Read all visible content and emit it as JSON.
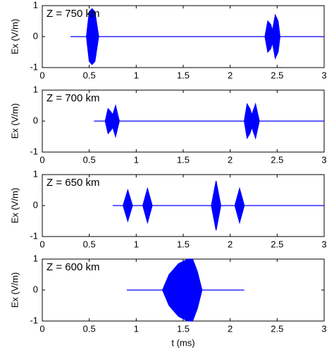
{
  "chart_data": [
    {
      "type": "area",
      "annotation": "Z = 750 km",
      "ylabel": "Ex (V/m)",
      "x": [
        0.3,
        0.47,
        0.5,
        0.53,
        0.56,
        0.6,
        2.37,
        2.4,
        2.43,
        2.45,
        2.48,
        2.51,
        2.53,
        3
      ],
      "upper": [
        0,
        0,
        0.8,
        0.9,
        0.8,
        0,
        0,
        0.5,
        0.4,
        0.2,
        0.7,
        0.5,
        0,
        0
      ],
      "lower": [
        0,
        0,
        -0.8,
        -0.9,
        -0.8,
        0,
        0,
        -0.5,
        -0.4,
        -0.2,
        -0.7,
        -0.5,
        0,
        0
      ],
      "color": "#0000ff",
      "xlim": [
        0,
        3
      ],
      "ylim": [
        -1,
        1
      ],
      "xticks": [
        0,
        0.5,
        1,
        1.5,
        2,
        2.5,
        3
      ],
      "yticks": [
        -1,
        0,
        1
      ]
    },
    {
      "type": "area",
      "annotation": "Z = 700 km",
      "ylabel": "Ex (V/m)",
      "x": [
        0.55,
        0.67,
        0.7,
        0.73,
        0.75,
        0.78,
        0.82,
        2.15,
        2.18,
        2.21,
        2.23,
        2.27,
        2.31,
        3
      ],
      "upper": [
        0,
        0,
        0.4,
        0.3,
        0.2,
        0.5,
        0,
        0,
        0.55,
        0.4,
        0.2,
        0.55,
        0,
        0
      ],
      "lower": [
        0,
        0,
        -0.4,
        -0.3,
        -0.2,
        -0.5,
        0,
        0,
        -0.55,
        -0.4,
        -0.2,
        -0.55,
        0,
        0
      ],
      "color": "#0000ff",
      "xlim": [
        0,
        3
      ],
      "ylim": [
        -1,
        1
      ],
      "xticks": [
        0,
        0.5,
        1,
        1.5,
        2,
        2.5,
        3
      ],
      "yticks": [
        -1,
        0,
        1
      ]
    },
    {
      "type": "area",
      "annotation": "Z = 650 km",
      "ylabel": "Ex (V/m)",
      "x": [
        0.75,
        0.86,
        0.91,
        0.96,
        1.07,
        1.12,
        1.17,
        1.8,
        1.85,
        1.9,
        2.05,
        2.1,
        2.15,
        3
      ],
      "upper": [
        0,
        0,
        0.5,
        0,
        0,
        0.55,
        0,
        0,
        0.8,
        0,
        0,
        0.55,
        0,
        0
      ],
      "lower": [
        0,
        0,
        -0.5,
        0,
        0,
        -0.55,
        0,
        0,
        -0.8,
        0,
        0,
        -0.55,
        0,
        0
      ],
      "color": "#0000ff",
      "xlim": [
        0,
        3
      ],
      "ylim": [
        -1,
        1
      ],
      "xticks": [
        0,
        0.5,
        1,
        1.5,
        2,
        2.5,
        3
      ],
      "yticks": [
        -1,
        0,
        1
      ]
    },
    {
      "type": "area",
      "annotation": "Z = 600 km",
      "ylabel": "Ex (V/m)",
      "xlabel": "t (ms)",
      "x": [
        0.9,
        1.28,
        1.35,
        1.45,
        1.55,
        1.6,
        1.65,
        1.7,
        2.15
      ],
      "upper": [
        0,
        0,
        0.5,
        0.85,
        1,
        1,
        0.6,
        0,
        0
      ],
      "lower": [
        0,
        0,
        -0.5,
        -0.85,
        -1,
        -1,
        -0.6,
        0,
        0
      ],
      "color": "#0000ff",
      "xlim": [
        0,
        3
      ],
      "ylim": [
        -1,
        1
      ],
      "xticks": [
        0,
        0.5,
        1,
        1.5,
        2,
        2.5,
        3
      ],
      "yticks": [
        -1,
        0,
        1
      ]
    }
  ]
}
